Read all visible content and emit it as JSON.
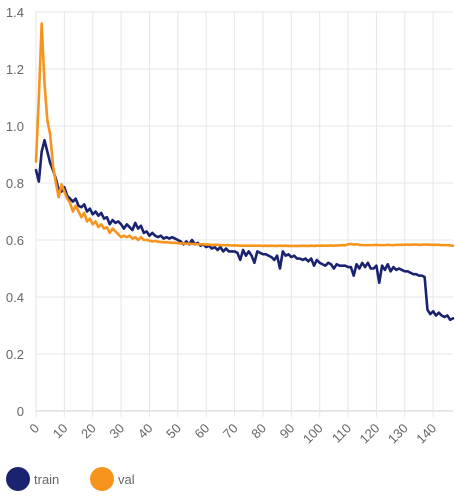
{
  "chart_data": {
    "type": "line",
    "title": "",
    "xlabel": "",
    "ylabel": "",
    "xlim": [
      0,
      147
    ],
    "ylim": [
      0,
      1.4
    ],
    "xticks": [
      0,
      10,
      20,
      30,
      40,
      50,
      60,
      70,
      80,
      90,
      100,
      110,
      120,
      130,
      140
    ],
    "xtick_labels": [
      "0",
      "10",
      "20",
      "30",
      "40",
      "50",
      "60",
      "70",
      "80",
      "90",
      "100",
      "110",
      "120",
      "130",
      "140"
    ],
    "yticks": [
      0,
      0.2,
      0.4,
      0.6,
      0.8,
      1.0,
      1.2,
      1.4
    ],
    "ytick_labels": [
      "0",
      "0.2",
      "0.4",
      "0.6",
      "0.8",
      "1.0",
      "1.2",
      "1.4"
    ],
    "grid": true,
    "legend_position": "bottom-left",
    "series": [
      {
        "name": "train",
        "color": "#1a2370",
        "points": [
          [
            0,
            0.845
          ],
          [
            1,
            0.805
          ],
          [
            2,
            0.91
          ],
          [
            3,
            0.95
          ],
          [
            4,
            0.91
          ],
          [
            5,
            0.87
          ],
          [
            6,
            0.845
          ],
          [
            7,
            0.815
          ],
          [
            8,
            0.775
          ],
          [
            9,
            0.77
          ],
          [
            10,
            0.785
          ],
          [
            11,
            0.755
          ],
          [
            12,
            0.745
          ],
          [
            13,
            0.735
          ],
          [
            14,
            0.745
          ],
          [
            15,
            0.72
          ],
          [
            16,
            0.715
          ],
          [
            17,
            0.725
          ],
          [
            18,
            0.7
          ],
          [
            19,
            0.71
          ],
          [
            20,
            0.69
          ],
          [
            21,
            0.7
          ],
          [
            22,
            0.685
          ],
          [
            23,
            0.695
          ],
          [
            24,
            0.675
          ],
          [
            25,
            0.68
          ],
          [
            26,
            0.655
          ],
          [
            27,
            0.67
          ],
          [
            28,
            0.66
          ],
          [
            29,
            0.665
          ],
          [
            30,
            0.655
          ],
          [
            31,
            0.64
          ],
          [
            32,
            0.655
          ],
          [
            33,
            0.645
          ],
          [
            34,
            0.635
          ],
          [
            35,
            0.66
          ],
          [
            36,
            0.64
          ],
          [
            37,
            0.65
          ],
          [
            38,
            0.625
          ],
          [
            39,
            0.63
          ],
          [
            40,
            0.615
          ],
          [
            41,
            0.625
          ],
          [
            42,
            0.615
          ],
          [
            43,
            0.61
          ],
          [
            44,
            0.615
          ],
          [
            45,
            0.605
          ],
          [
            46,
            0.61
          ],
          [
            47,
            0.605
          ],
          [
            48,
            0.61
          ],
          [
            49,
            0.605
          ],
          [
            50,
            0.6
          ],
          [
            51,
            0.595
          ],
          [
            52,
            0.585
          ],
          [
            53,
            0.595
          ],
          [
            54,
            0.585
          ],
          [
            55,
            0.6
          ],
          [
            56,
            0.585
          ],
          [
            57,
            0.59
          ],
          [
            58,
            0.58
          ],
          [
            59,
            0.585
          ],
          [
            60,
            0.575
          ],
          [
            61,
            0.58
          ],
          [
            62,
            0.57
          ],
          [
            63,
            0.575
          ],
          [
            64,
            0.565
          ],
          [
            65,
            0.575
          ],
          [
            66,
            0.56
          ],
          [
            67,
            0.57
          ],
          [
            68,
            0.56
          ],
          [
            69,
            0.56
          ],
          [
            70,
            0.56
          ],
          [
            71,
            0.555
          ],
          [
            72,
            0.53
          ],
          [
            73,
            0.565
          ],
          [
            74,
            0.545
          ],
          [
            75,
            0.56
          ],
          [
            76,
            0.545
          ],
          [
            77,
            0.52
          ],
          [
            78,
            0.56
          ],
          [
            79,
            0.555
          ],
          [
            80,
            0.55
          ],
          [
            81,
            0.55
          ],
          [
            82,
            0.545
          ],
          [
            83,
            0.54
          ],
          [
            84,
            0.53
          ],
          [
            85,
            0.545
          ],
          [
            86,
            0.5
          ],
          [
            87,
            0.56
          ],
          [
            88,
            0.545
          ],
          [
            89,
            0.55
          ],
          [
            90,
            0.54
          ],
          [
            91,
            0.545
          ],
          [
            92,
            0.535
          ],
          [
            93,
            0.535
          ],
          [
            94,
            0.53
          ],
          [
            95,
            0.535
          ],
          [
            96,
            0.525
          ],
          [
            97,
            0.535
          ],
          [
            98,
            0.51
          ],
          [
            99,
            0.53
          ],
          [
            100,
            0.52
          ],
          [
            101,
            0.515
          ],
          [
            102,
            0.51
          ],
          [
            103,
            0.52
          ],
          [
            104,
            0.515
          ],
          [
            105,
            0.5
          ],
          [
            106,
            0.515
          ],
          [
            107,
            0.51
          ],
          [
            108,
            0.51
          ],
          [
            109,
            0.51
          ],
          [
            110,
            0.505
          ],
          [
            111,
            0.505
          ],
          [
            112,
            0.475
          ],
          [
            113,
            0.515
          ],
          [
            114,
            0.5
          ],
          [
            115,
            0.52
          ],
          [
            116,
            0.505
          ],
          [
            117,
            0.52
          ],
          [
            118,
            0.5
          ],
          [
            119,
            0.5
          ],
          [
            120,
            0.51
          ],
          [
            121,
            0.45
          ],
          [
            122,
            0.51
          ],
          [
            123,
            0.495
          ],
          [
            124,
            0.515
          ],
          [
            125,
            0.49
          ],
          [
            126,
            0.505
          ],
          [
            127,
            0.495
          ],
          [
            128,
            0.5
          ],
          [
            129,
            0.495
          ],
          [
            130,
            0.49
          ],
          [
            131,
            0.49
          ],
          [
            132,
            0.485
          ],
          [
            133,
            0.48
          ],
          [
            134,
            0.48
          ],
          [
            135,
            0.475
          ],
          [
            136,
            0.475
          ],
          [
            137,
            0.47
          ],
          [
            138,
            0.355
          ],
          [
            139,
            0.34
          ],
          [
            140,
            0.35
          ],
          [
            141,
            0.335
          ],
          [
            142,
            0.345
          ],
          [
            143,
            0.335
          ],
          [
            144,
            0.33
          ],
          [
            145,
            0.335
          ],
          [
            146,
            0.32
          ],
          [
            147,
            0.325
          ]
        ]
      },
      {
        "name": "val",
        "color": "#f7941d",
        "points": [
          [
            0,
            0.875
          ],
          [
            1,
            1.1
          ],
          [
            2,
            1.36
          ],
          [
            3,
            1.15
          ],
          [
            4,
            1.02
          ],
          [
            5,
            0.97
          ],
          [
            6,
            0.86
          ],
          [
            7,
            0.8
          ],
          [
            8,
            0.75
          ],
          [
            9,
            0.795
          ],
          [
            10,
            0.77
          ],
          [
            11,
            0.745
          ],
          [
            12,
            0.73
          ],
          [
            13,
            0.7
          ],
          [
            14,
            0.72
          ],
          [
            15,
            0.7
          ],
          [
            16,
            0.68
          ],
          [
            17,
            0.695
          ],
          [
            18,
            0.665
          ],
          [
            19,
            0.675
          ],
          [
            20,
            0.655
          ],
          [
            21,
            0.665
          ],
          [
            22,
            0.645
          ],
          [
            23,
            0.655
          ],
          [
            24,
            0.64
          ],
          [
            25,
            0.645
          ],
          [
            26,
            0.625
          ],
          [
            27,
            0.64
          ],
          [
            28,
            0.63
          ],
          [
            29,
            0.62
          ],
          [
            30,
            0.61
          ],
          [
            31,
            0.615
          ],
          [
            32,
            0.61
          ],
          [
            33,
            0.615
          ],
          [
            34,
            0.605
          ],
          [
            35,
            0.61
          ],
          [
            36,
            0.6
          ],
          [
            37,
            0.61
          ],
          [
            38,
            0.6
          ],
          [
            39,
            0.6
          ],
          [
            40,
            0.598
          ],
          [
            41,
            0.595
          ],
          [
            42,
            0.597
          ],
          [
            43,
            0.594
          ],
          [
            44,
            0.593
          ],
          [
            45,
            0.592
          ],
          [
            46,
            0.592
          ],
          [
            47,
            0.591
          ],
          [
            48,
            0.59
          ],
          [
            49,
            0.59
          ],
          [
            50,
            0.589
          ],
          [
            51,
            0.588
          ],
          [
            52,
            0.588
          ],
          [
            53,
            0.587
          ],
          [
            54,
            0.587
          ],
          [
            55,
            0.586
          ],
          [
            56,
            0.586
          ],
          [
            57,
            0.585
          ],
          [
            58,
            0.585
          ],
          [
            59,
            0.585
          ],
          [
            60,
            0.584
          ],
          [
            61,
            0.584
          ],
          [
            62,
            0.583
          ],
          [
            63,
            0.583
          ],
          [
            64,
            0.583
          ],
          [
            65,
            0.582
          ],
          [
            66,
            0.582
          ],
          [
            67,
            0.582
          ],
          [
            68,
            0.582
          ],
          [
            69,
            0.581
          ],
          [
            70,
            0.581
          ],
          [
            71,
            0.581
          ],
          [
            72,
            0.58
          ],
          [
            73,
            0.58
          ],
          [
            74,
            0.58
          ],
          [
            75,
            0.58
          ],
          [
            76,
            0.58
          ],
          [
            77,
            0.58
          ],
          [
            78,
            0.58
          ],
          [
            79,
            0.58
          ],
          [
            80,
            0.579
          ],
          [
            81,
            0.58
          ],
          [
            82,
            0.579
          ],
          [
            83,
            0.58
          ],
          [
            84,
            0.579
          ],
          [
            85,
            0.579
          ],
          [
            86,
            0.58
          ],
          [
            87,
            0.579
          ],
          [
            88,
            0.58
          ],
          [
            89,
            0.579
          ],
          [
            90,
            0.579
          ],
          [
            91,
            0.579
          ],
          [
            92,
            0.579
          ],
          [
            93,
            0.579
          ],
          [
            94,
            0.58
          ],
          [
            95,
            0.579
          ],
          [
            96,
            0.579
          ],
          [
            97,
            0.58
          ],
          [
            98,
            0.579
          ],
          [
            99,
            0.58
          ],
          [
            100,
            0.58
          ],
          [
            101,
            0.58
          ],
          [
            102,
            0.58
          ],
          [
            103,
            0.58
          ],
          [
            104,
            0.581
          ],
          [
            105,
            0.58
          ],
          [
            106,
            0.581
          ],
          [
            107,
            0.581
          ],
          [
            108,
            0.582
          ],
          [
            109,
            0.581
          ],
          [
            110,
            0.585
          ],
          [
            111,
            0.586
          ],
          [
            112,
            0.584
          ],
          [
            113,
            0.585
          ],
          [
            114,
            0.583
          ],
          [
            115,
            0.582
          ],
          [
            116,
            0.582
          ],
          [
            117,
            0.582
          ],
          [
            118,
            0.582
          ],
          [
            119,
            0.582
          ],
          [
            120,
            0.583
          ],
          [
            121,
            0.582
          ],
          [
            122,
            0.582
          ],
          [
            123,
            0.582
          ],
          [
            124,
            0.583
          ],
          [
            125,
            0.582
          ],
          [
            126,
            0.582
          ],
          [
            127,
            0.583
          ],
          [
            128,
            0.583
          ],
          [
            129,
            0.583
          ],
          [
            130,
            0.583
          ],
          [
            131,
            0.584
          ],
          [
            132,
            0.583
          ],
          [
            133,
            0.584
          ],
          [
            134,
            0.584
          ],
          [
            135,
            0.583
          ],
          [
            136,
            0.583
          ],
          [
            137,
            0.584
          ],
          [
            138,
            0.584
          ],
          [
            139,
            0.583
          ],
          [
            140,
            0.583
          ],
          [
            141,
            0.583
          ],
          [
            142,
            0.583
          ],
          [
            143,
            0.582
          ],
          [
            144,
            0.582
          ],
          [
            145,
            0.582
          ],
          [
            146,
            0.581
          ],
          [
            147,
            0.58
          ]
        ]
      }
    ]
  }
}
